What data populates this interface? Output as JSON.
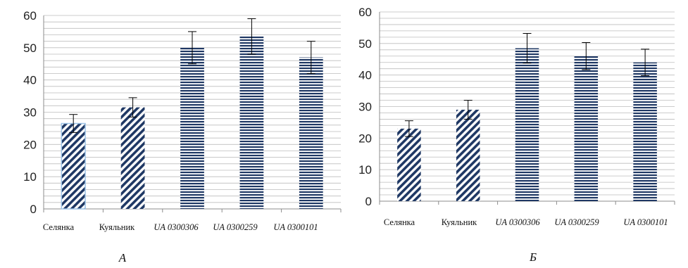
{
  "colors": {
    "bar": "#1f3864",
    "grid": "#bdbdbd",
    "axis": "#8c8c8c"
  },
  "chart_data": [
    {
      "type": "bar",
      "panel_label": "А",
      "categories": [
        "Селянка",
        "Куяльник",
        "UA 0300306",
        "UA 0300259",
        "UA 0300101"
      ],
      "values": [
        26.5,
        31.5,
        50,
        53.5,
        47
      ],
      "errors": [
        2.8,
        3,
        5,
        5.5,
        5
      ],
      "patterns": [
        "diag",
        "diag",
        "horiz",
        "horiz",
        "horiz"
      ],
      "ylim": [
        0,
        60
      ],
      "yticks": [
        "0",
        "10",
        "20",
        "30",
        "40",
        "50",
        "60"
      ],
      "grid": true
    },
    {
      "type": "bar",
      "panel_label": "Б",
      "categories": [
        "Селянка",
        "Куяльник",
        "UA 0300306",
        "UA 0300259",
        "UA 0300101"
      ],
      "values": [
        23,
        29,
        48.5,
        46,
        44
      ],
      "errors": [
        2.5,
        3,
        4.7,
        4.3,
        4.2
      ],
      "patterns": [
        "diag",
        "diag",
        "horiz",
        "horiz",
        "horiz"
      ],
      "ylim": [
        0,
        60
      ],
      "yticks": [
        "0",
        "10",
        "20",
        "30",
        "40",
        "50",
        "60"
      ],
      "grid": true
    }
  ]
}
